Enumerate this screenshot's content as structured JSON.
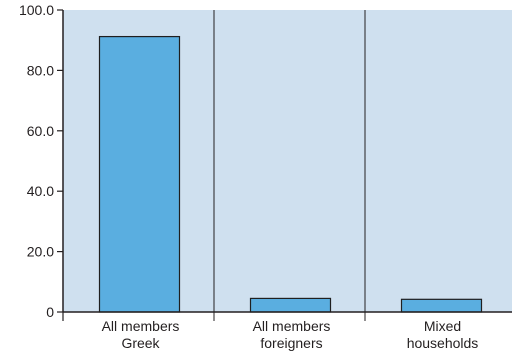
{
  "chart_data": {
    "type": "bar",
    "categories": [
      [
        "All members",
        "Greek"
      ],
      [
        "All members",
        "foreigners"
      ],
      [
        "Mixed",
        "households"
      ]
    ],
    "values": [
      91.2,
      4.5,
      4.2
    ],
    "yticks": [
      "0",
      "20.0",
      "40.0",
      "60.0",
      "80.0",
      "100.0"
    ],
    "ylim": [
      0,
      100
    ],
    "grid": "vertical separators between categories",
    "colors": {
      "plot_background": "#cfe0ef",
      "bar_fill": "#5aaee0",
      "bar_stroke": "#1f1f1f",
      "axis": "#231f20"
    }
  }
}
